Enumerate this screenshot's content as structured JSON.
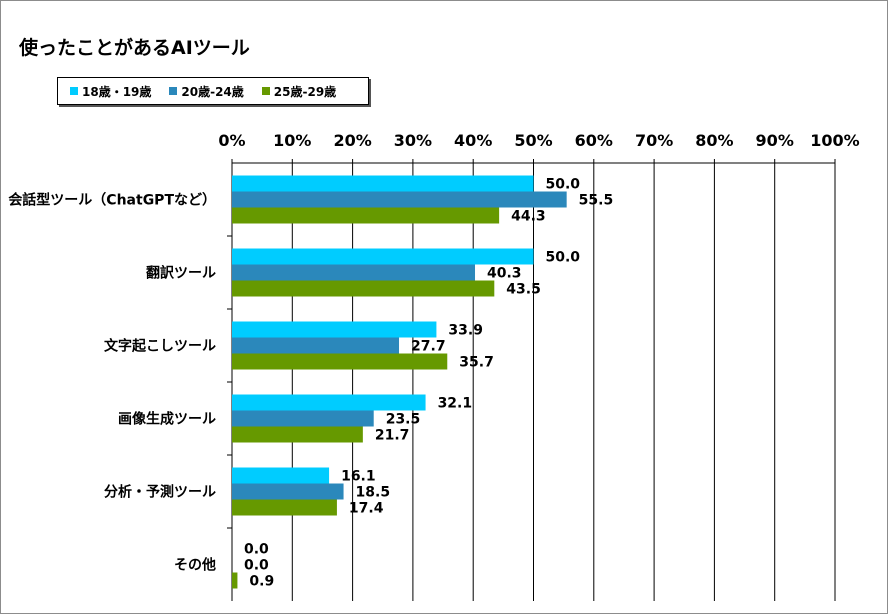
{
  "chart_data": {
    "type": "bar",
    "orientation": "horizontal",
    "title": "使ったことがあるAIツール",
    "categories": [
      "会話型ツール（ChatGPTなど）",
      "翻訳ツール",
      "文字起こしツール",
      "画像生成ツール",
      "分析・予測ツール",
      "その他"
    ],
    "series": [
      {
        "name": "18歳・19歳",
        "color": "#00ccff",
        "values": [
          50.0,
          50.0,
          33.9,
          32.1,
          16.1,
          0.0
        ]
      },
      {
        "name": "20歳-24歳",
        "color": "#2b88bb",
        "values": [
          55.5,
          40.3,
          27.7,
          23.5,
          18.5,
          0.0
        ]
      },
      {
        "name": "25歳-29歳",
        "color": "#669900",
        "values": [
          44.3,
          43.5,
          35.7,
          21.7,
          17.4,
          0.9
        ]
      }
    ],
    "value_labels": [
      [
        "50.0",
        "50.0",
        "33.9",
        "32.1",
        "16.1",
        "0.0"
      ],
      [
        "55.5",
        "40.3",
        "27.7",
        "23.5",
        "18.5",
        "0.0"
      ],
      [
        "44.3",
        "43.5",
        "35.7",
        "21.7",
        "17.4",
        "0.9"
      ]
    ],
    "xlim": [
      0,
      100
    ],
    "xticks": [
      0,
      10,
      20,
      30,
      40,
      50,
      60,
      70,
      80,
      90,
      100
    ],
    "xtick_labels": [
      "0%",
      "10%",
      "20%",
      "30%",
      "40%",
      "50%",
      "60%",
      "70%",
      "80%",
      "90%",
      "100%"
    ],
    "x_axis_position": "top",
    "grid": true,
    "legend_position": "top-left"
  }
}
